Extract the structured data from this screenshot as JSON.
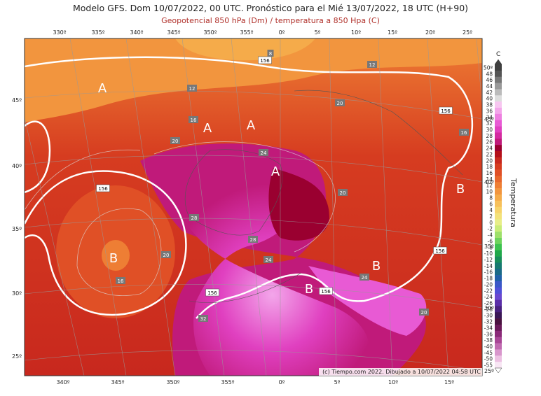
{
  "header": {
    "title": "Modelo GFS. Dom 10/07/2022, 00 UTC. Pronóstico para el Mié 13/07/2022, 18 UTC (H+90)",
    "subtitle": "Geopotencial 850 hPa (Dm) / temperatura a 850 Hpa (C)"
  },
  "map": {
    "top_longitudes": [
      "330º",
      "335º",
      "340º",
      "345º",
      "350º",
      "355º",
      "0º",
      "5º",
      "10º",
      "15º",
      "20º",
      "25º"
    ],
    "bottom_longitudes": [
      "340º",
      "345º",
      "350º",
      "355º",
      "0º",
      "5º",
      "10º",
      "15º"
    ],
    "left_latitudes": [
      "45º",
      "40º",
      "35º",
      "30º",
      "25º"
    ],
    "right_latitudes": [
      "45º",
      "40º",
      "35º",
      "30º",
      "25º"
    ],
    "pressure_centers": [
      "A",
      "A",
      "A",
      "A",
      "B",
      "B",
      "B",
      "B"
    ],
    "contour_labels": [
      "156",
      "156",
      "156",
      "156",
      "156",
      "156",
      "12",
      "12",
      "16",
      "16",
      "16",
      "20",
      "20",
      "20",
      "20",
      "20",
      "24",
      "24",
      "24",
      "28",
      "28",
      "32",
      "8"
    ],
    "credit": "(c) Tiempo.com 2022. Dibujado a 10/07/2022 04:58 UTC"
  },
  "colorbar": {
    "unit": "C",
    "title": "Temperatura",
    "ticks": [
      {
        "value": 50,
        "label": "50º"
      },
      48,
      46,
      44,
      42,
      40,
      38,
      36,
      34,
      32,
      30,
      28,
      26,
      24,
      22,
      20,
      18,
      16,
      14,
      12,
      10,
      8,
      6,
      4,
      2,
      0,
      -2,
      -4,
      -6,
      -8,
      -10,
      -12,
      -14,
      -16,
      -18,
      -20,
      -22,
      -24,
      -26,
      -28,
      -30,
      -32,
      -34,
      -36,
      -38,
      -40,
      -45,
      -50,
      -55
    ],
    "colors": [
      "#404040",
      "#555555",
      "#777777",
      "#999999",
      "#bbbbbb",
      "#dddddd",
      "#f7c6f0",
      "#f3a6ea",
      "#ee7fe0",
      "#e85ad4",
      "#e040c0",
      "#d42aa0",
      "#c01a7a",
      "#9a0030",
      "#b40f1a",
      "#c8281e",
      "#d63c20",
      "#e05026",
      "#e8672c",
      "#ee7e34",
      "#f2953e",
      "#f5ab4a",
      "#f7c05a",
      "#f7d36a",
      "#f3e27a",
      "#e8ee88",
      "#c9ec78",
      "#9ee06a",
      "#6ed35c",
      "#3cc24e",
      "#20a84a",
      "#188e5a",
      "#167a70",
      "#1a6a88",
      "#2060a8",
      "#3a58c8",
      "#5050d8",
      "#6a48d0",
      "#5a2ea8",
      "#48207e",
      "#3a1656",
      "#4a1240",
      "#6a1a5a",
      "#8a2a78",
      "#a84696",
      "#c06ab0",
      "#d896cc",
      "#ecc0e2",
      "#f8e6f4"
    ]
  }
}
